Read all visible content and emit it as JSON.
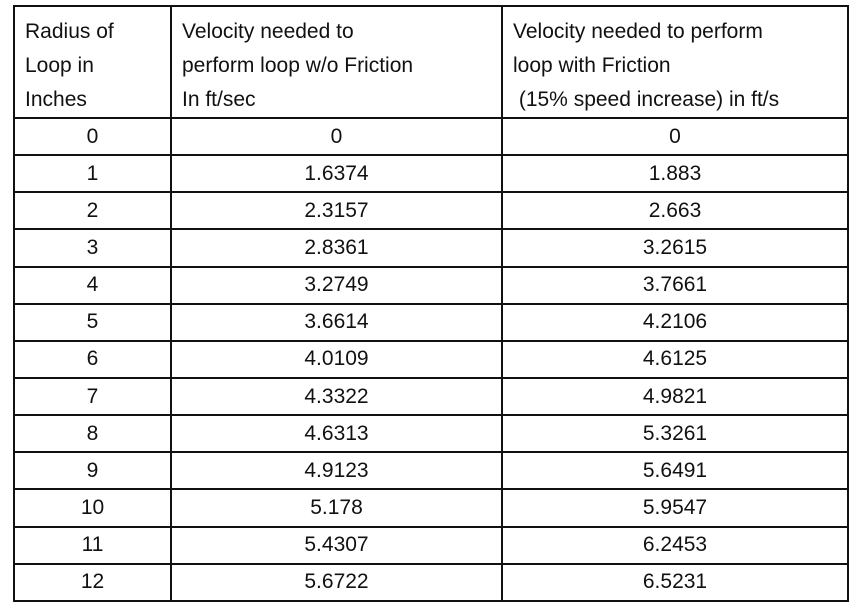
{
  "table": {
    "headers": [
      {
        "lines": [
          "Radius of",
          "Loop in",
          "Inches"
        ]
      },
      {
        "lines": [
          "Velocity needed to",
          "perform loop w/o Friction",
          "In ft/sec"
        ]
      },
      {
        "lines": [
          "Velocity needed to perform",
          "loop with Friction",
          " (15% speed increase) in ft/s"
        ]
      }
    ],
    "rows": [
      [
        "0",
        "0",
        "0"
      ],
      [
        "1",
        "1.6374",
        "1.883"
      ],
      [
        "2",
        "2.3157",
        "2.663"
      ],
      [
        "3",
        "2.8361",
        "3.2615"
      ],
      [
        "4",
        "3.2749",
        "3.7661"
      ],
      [
        "5",
        "3.6614",
        "4.2106"
      ],
      [
        "6",
        "4.0109",
        "4.6125"
      ],
      [
        "7",
        "4.3322",
        "4.9821"
      ],
      [
        "8",
        "4.6313",
        "5.3261"
      ],
      [
        "9",
        "4.9123",
        "5.6491"
      ],
      [
        "10",
        "5.178",
        "5.9547"
      ],
      [
        "11",
        "5.4307",
        "6.2453"
      ],
      [
        "12",
        "5.6722",
        "6.5231"
      ]
    ]
  }
}
